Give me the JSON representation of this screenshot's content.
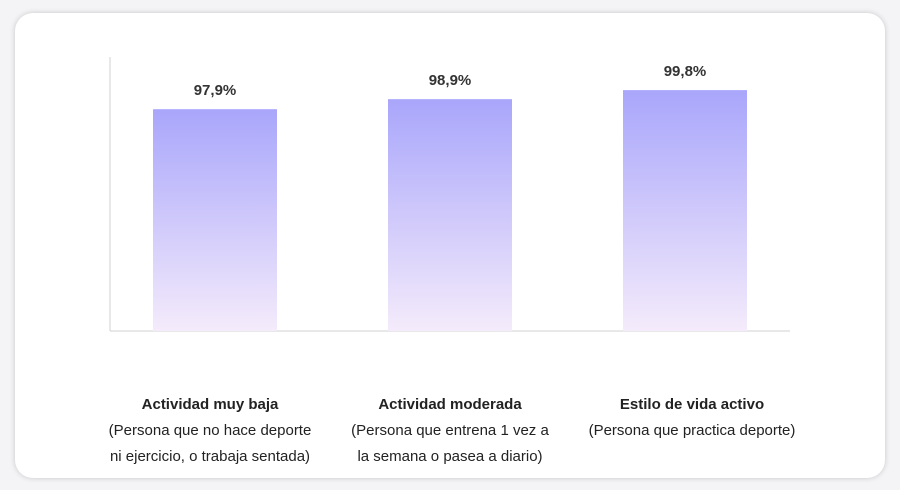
{
  "chart_data": {
    "type": "bar",
    "categories": [
      {
        "title": "Actividad muy baja",
        "desc1": "(Persona que no hace deporte",
        "desc2": "ni ejercicio, o trabaja sentada)"
      },
      {
        "title": "Actividad moderada",
        "desc1": "(Persona que entrena 1 vez a",
        "desc2": "la semana o pasea a diario)"
      },
      {
        "title": "Estilo de vida activo",
        "desc1": "(Persona que practica deporte)",
        "desc2": ""
      }
    ],
    "values": [
      97.9,
      98.9,
      99.8
    ],
    "data_labels": [
      "97,9%",
      "98,9%",
      "99,8%"
    ],
    "ylim": [
      75.8,
      103.1
    ],
    "grid": false,
    "colors": {
      "bar_top": "#a9a6fb",
      "bar_bottom": "#f4ebfb",
      "axis": "#d0d0d0",
      "label": "#333333"
    }
  }
}
